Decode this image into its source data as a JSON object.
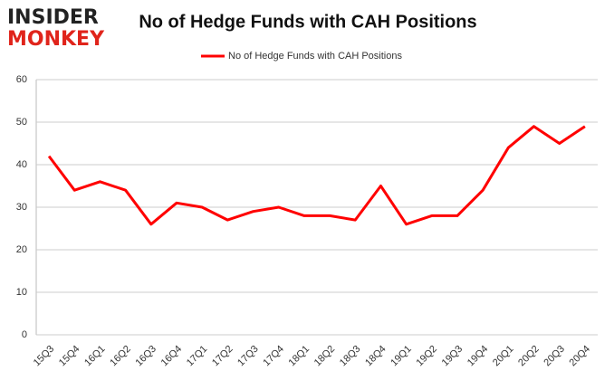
{
  "logo": {
    "line1": "INSIDER",
    "line2": "MONKEY"
  },
  "chart_data": {
    "type": "line",
    "title": "No of Hedge Funds with CAH Positions",
    "categories": [
      "15Q3",
      "15Q4",
      "16Q1",
      "16Q2",
      "16Q3",
      "16Q4",
      "17Q1",
      "17Q2",
      "17Q3",
      "17Q4",
      "18Q1",
      "18Q2",
      "18Q3",
      "18Q4",
      "19Q1",
      "19Q2",
      "19Q3",
      "19Q4",
      "20Q1",
      "20Q2",
      "20Q3",
      "20Q4"
    ],
    "series": [
      {
        "name": "No of Hedge Funds with CAH Positions",
        "color": "#ff0000",
        "values": [
          42,
          34,
          36,
          34,
          26,
          31,
          30,
          27,
          29,
          30,
          28,
          28,
          27,
          35,
          26,
          28,
          28,
          34,
          44,
          49,
          45,
          49
        ]
      }
    ],
    "ylim": [
      0,
      60
    ],
    "yticks": [
      0,
      10,
      20,
      30,
      40,
      50,
      60
    ],
    "grid": true,
    "legend": "top"
  }
}
